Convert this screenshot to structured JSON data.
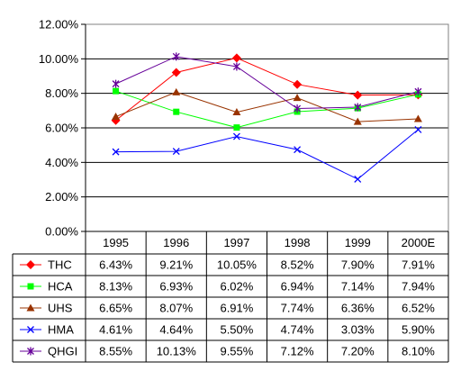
{
  "chart_data": {
    "type": "line",
    "categories": [
      "1995",
      "1996",
      "1997",
      "1998",
      "1999",
      "2000E"
    ],
    "ylim": [
      0,
      12
    ],
    "yticks": [
      "0.00%",
      "2.00%",
      "4.00%",
      "6.00%",
      "8.00%",
      "10.00%",
      "12.00%"
    ],
    "ytick_values": [
      0,
      2,
      4,
      6,
      8,
      10,
      12
    ],
    "grid": true,
    "legend": "data table below plot",
    "series": [
      {
        "name": "THC",
        "color": "#FF0000",
        "marker_color": "#FF0000",
        "marker": "diamond",
        "values": [
          6.43,
          9.21,
          10.05,
          8.52,
          7.9,
          7.91
        ],
        "labels": [
          "6.43%",
          "9.21%",
          "10.05%",
          "8.52%",
          "7.90%",
          "7.91%"
        ]
      },
      {
        "name": "HCA",
        "color": "#00FF00",
        "marker_color": "#00FF00",
        "marker": "square",
        "values": [
          8.13,
          6.93,
          6.02,
          6.94,
          7.14,
          7.94
        ],
        "labels": [
          "8.13%",
          "6.93%",
          "6.02%",
          "6.94%",
          "7.14%",
          "7.94%"
        ]
      },
      {
        "name": "UHS",
        "color": "#993300",
        "marker_color": "#993300",
        "marker": "triangle",
        "values": [
          6.65,
          8.07,
          6.91,
          7.74,
          6.36,
          6.52
        ],
        "labels": [
          "6.65%",
          "8.07%",
          "6.91%",
          "7.74%",
          "6.36%",
          "6.52%"
        ]
      },
      {
        "name": "HMA",
        "color": "#0000FF",
        "marker_color": "#0000FF",
        "marker": "x",
        "values": [
          4.61,
          4.64,
          5.5,
          4.74,
          3.03,
          5.9
        ],
        "labels": [
          "4.61%",
          "4.64%",
          "5.50%",
          "4.74%",
          "3.03%",
          "5.90%"
        ]
      },
      {
        "name": "QHGI",
        "color": "#660099",
        "marker_color": "#660099",
        "marker": "star",
        "values": [
          8.55,
          10.13,
          9.55,
          7.12,
          7.2,
          8.1
        ],
        "labels": [
          "8.55%",
          "10.13%",
          "9.55%",
          "7.12%",
          "7.20%",
          "8.10%"
        ]
      }
    ]
  }
}
